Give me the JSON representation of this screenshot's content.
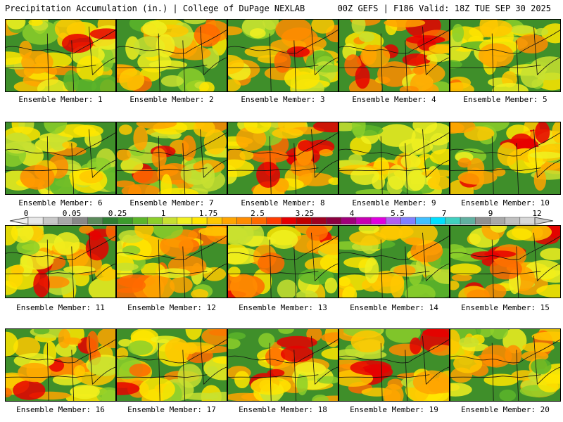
{
  "header": {
    "left": "Precipitation Accumulation (in.) | College of DuPage NEXLAB",
    "right": "00Z GEFS | F186 Valid: 18Z TUE SEP 30 2025"
  },
  "members": [
    {
      "label": "Ensemble Member: 1",
      "intensity": 0.45
    },
    {
      "label": "Ensemble Member: 2",
      "intensity": 0.4
    },
    {
      "label": "Ensemble Member: 3",
      "intensity": 0.45
    },
    {
      "label": "Ensemble Member: 4",
      "intensity": 0.9
    },
    {
      "label": "Ensemble Member: 5",
      "intensity": 0.3
    },
    {
      "label": "Ensemble Member: 6",
      "intensity": 0.3
    },
    {
      "label": "Ensemble Member: 7",
      "intensity": 0.6
    },
    {
      "label": "Ensemble Member: 8",
      "intensity": 0.75
    },
    {
      "label": "Ensemble Member: 9",
      "intensity": 0.35
    },
    {
      "label": "Ensemble Member: 10",
      "intensity": 0.6
    },
    {
      "label": "Ensemble Member: 11",
      "intensity": 0.6
    },
    {
      "label": "Ensemble Member: 12",
      "intensity": 0.5
    },
    {
      "label": "Ensemble Member: 13",
      "intensity": 0.5
    },
    {
      "label": "Ensemble Member: 14",
      "intensity": 0.4
    },
    {
      "label": "Ensemble Member: 15",
      "intensity": 0.75
    },
    {
      "label": "Ensemble Member: 16",
      "intensity": 0.6
    },
    {
      "label": "Ensemble Member: 17",
      "intensity": 0.55
    },
    {
      "label": "Ensemble Member: 18",
      "intensity": 0.6
    },
    {
      "label": "Ensemble Member: 19",
      "intensity": 0.8
    },
    {
      "label": "Ensemble Member: 20",
      "intensity": 0.45
    }
  ],
  "legend": {
    "labels": [
      "0",
      "0.05",
      "0.25",
      "1",
      "1.75",
      "2.5",
      "3.25",
      "4",
      "5.5",
      "7",
      "9",
      "12"
    ],
    "colors": [
      "#e8e8e8",
      "#c8c8c8",
      "#a8a8a8",
      "#888888",
      "#5a8a5a",
      "#2e7d32",
      "#3b9b2b",
      "#5cb52a",
      "#8ccf2a",
      "#c8e030",
      "#f0f020",
      "#ffe600",
      "#ffc800",
      "#ffa500",
      "#ff8c00",
      "#ff6a00",
      "#ff3c00",
      "#e60000",
      "#c00000",
      "#a00020",
      "#8b0040",
      "#a0007a",
      "#c800b4",
      "#e000e0",
      "#b060f0",
      "#8080ff",
      "#40c0ff",
      "#00e0ff",
      "#40d0c0",
      "#60b0a0",
      "#909090",
      "#a8a8a8",
      "#c0c0c0",
      "#d8d8d8"
    ]
  }
}
